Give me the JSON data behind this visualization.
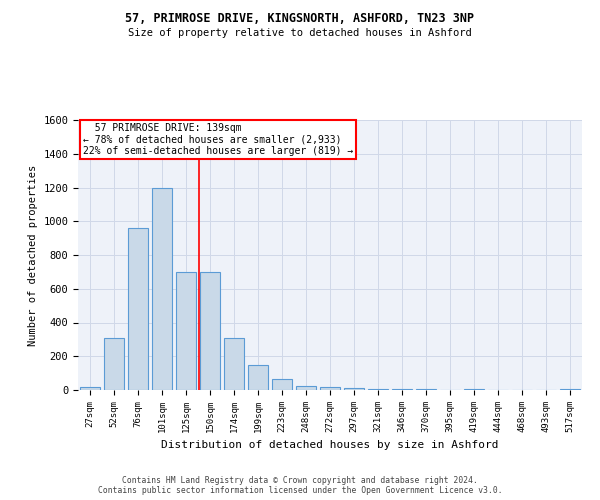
{
  "title1": "57, PRIMROSE DRIVE, KINGSNORTH, ASHFORD, TN23 3NP",
  "title2": "Size of property relative to detached houses in Ashford",
  "xlabel": "Distribution of detached houses by size in Ashford",
  "ylabel": "Number of detached properties",
  "footer1": "Contains HM Land Registry data © Crown copyright and database right 2024.",
  "footer2": "Contains public sector information licensed under the Open Government Licence v3.0.",
  "categories": [
    "27sqm",
    "52sqm",
    "76sqm",
    "101sqm",
    "125sqm",
    "150sqm",
    "174sqm",
    "199sqm",
    "223sqm",
    "248sqm",
    "272sqm",
    "297sqm",
    "321sqm",
    "346sqm",
    "370sqm",
    "395sqm",
    "419sqm",
    "444sqm",
    "468sqm",
    "493sqm",
    "517sqm"
  ],
  "values": [
    20,
    310,
    960,
    1200,
    700,
    700,
    310,
    150,
    65,
    25,
    15,
    10,
    5,
    5,
    5,
    0,
    5,
    0,
    0,
    0,
    5
  ],
  "bar_color": "#c9d9e8",
  "bar_edge_color": "#5b9bd5",
  "grid_color": "#d0d8e8",
  "background_color": "#eef2f9",
  "annotation_text1": "  57 PRIMROSE DRIVE: 139sqm  ",
  "annotation_text2": "← 78% of detached houses are smaller (2,933)",
  "annotation_text3": "22% of semi-detached houses are larger (819) →",
  "ylim": [
    0,
    1600
  ],
  "yticks": [
    0,
    200,
    400,
    600,
    800,
    1000,
    1200,
    1400,
    1600
  ]
}
